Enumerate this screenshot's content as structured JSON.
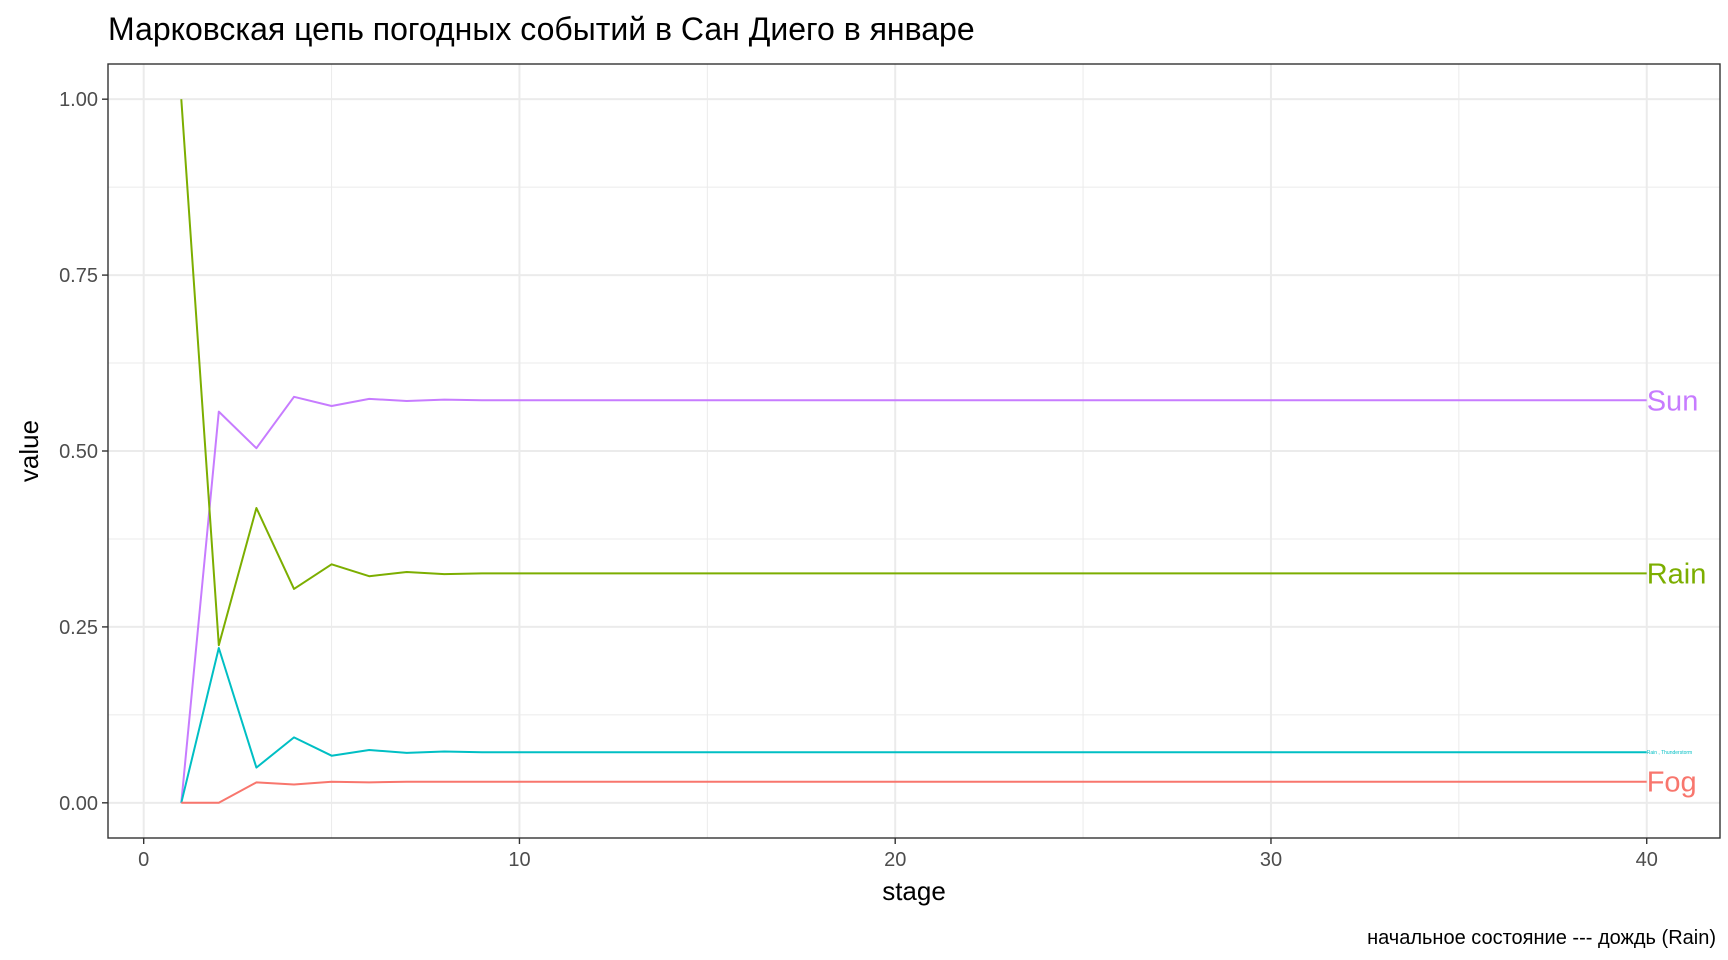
{
  "chart_data": {
    "type": "line",
    "title": "Марковская цепь погодных событий в Сан Диего в январе",
    "xlabel": "stage",
    "ylabel": "value",
    "caption": "начальное состояние --- дождь (Rain)",
    "xlim": [
      -0.95,
      41.95
    ],
    "ylim": [
      -0.05,
      1.05
    ],
    "x_ticks": [
      0,
      10,
      20,
      30,
      40
    ],
    "x_tick_labels": [
      "0",
      "10",
      "20",
      "30",
      "40"
    ],
    "y_ticks": [
      0,
      0.25,
      0.5,
      0.75,
      1.0
    ],
    "y_tick_labels": [
      "0.00",
      "0.25",
      "0.50",
      "0.75",
      "1.00"
    ],
    "x_minor": [
      5,
      15,
      25,
      35
    ],
    "y_minor": [
      0.125,
      0.375,
      0.625,
      0.875
    ],
    "grid": true,
    "legend": "direct labels at line ends (right)",
    "x": [
      1,
      2,
      3,
      4,
      5,
      6,
      7,
      8,
      9,
      10,
      40
    ],
    "series": [
      {
        "name": "Sun",
        "color": "#C77CFF",
        "label_size": "large",
        "values": [
          0,
          0.556,
          0.504,
          0.577,
          0.564,
          0.574,
          0.571,
          0.573,
          0.572,
          0.572,
          0.572
        ]
      },
      {
        "name": "Rain",
        "color": "#7CAE00",
        "label_size": "large",
        "values": [
          1.0,
          0.224,
          0.419,
          0.304,
          0.339,
          0.322,
          0.328,
          0.325,
          0.326,
          0.326,
          0.326
        ]
      },
      {
        "name": "Rain , Thunderstorm",
        "color": "#00BFC4",
        "label_size": "small",
        "values": [
          0,
          0.22,
          0.05,
          0.093,
          0.067,
          0.075,
          0.071,
          0.073,
          0.072,
          0.072,
          0.072
        ]
      },
      {
        "name": "Fog",
        "color": "#F8766D",
        "label_size": "large",
        "values": [
          0,
          0,
          0.029,
          0.026,
          0.03,
          0.029,
          0.03,
          0.03,
          0.03,
          0.03,
          0.03
        ]
      }
    ]
  }
}
